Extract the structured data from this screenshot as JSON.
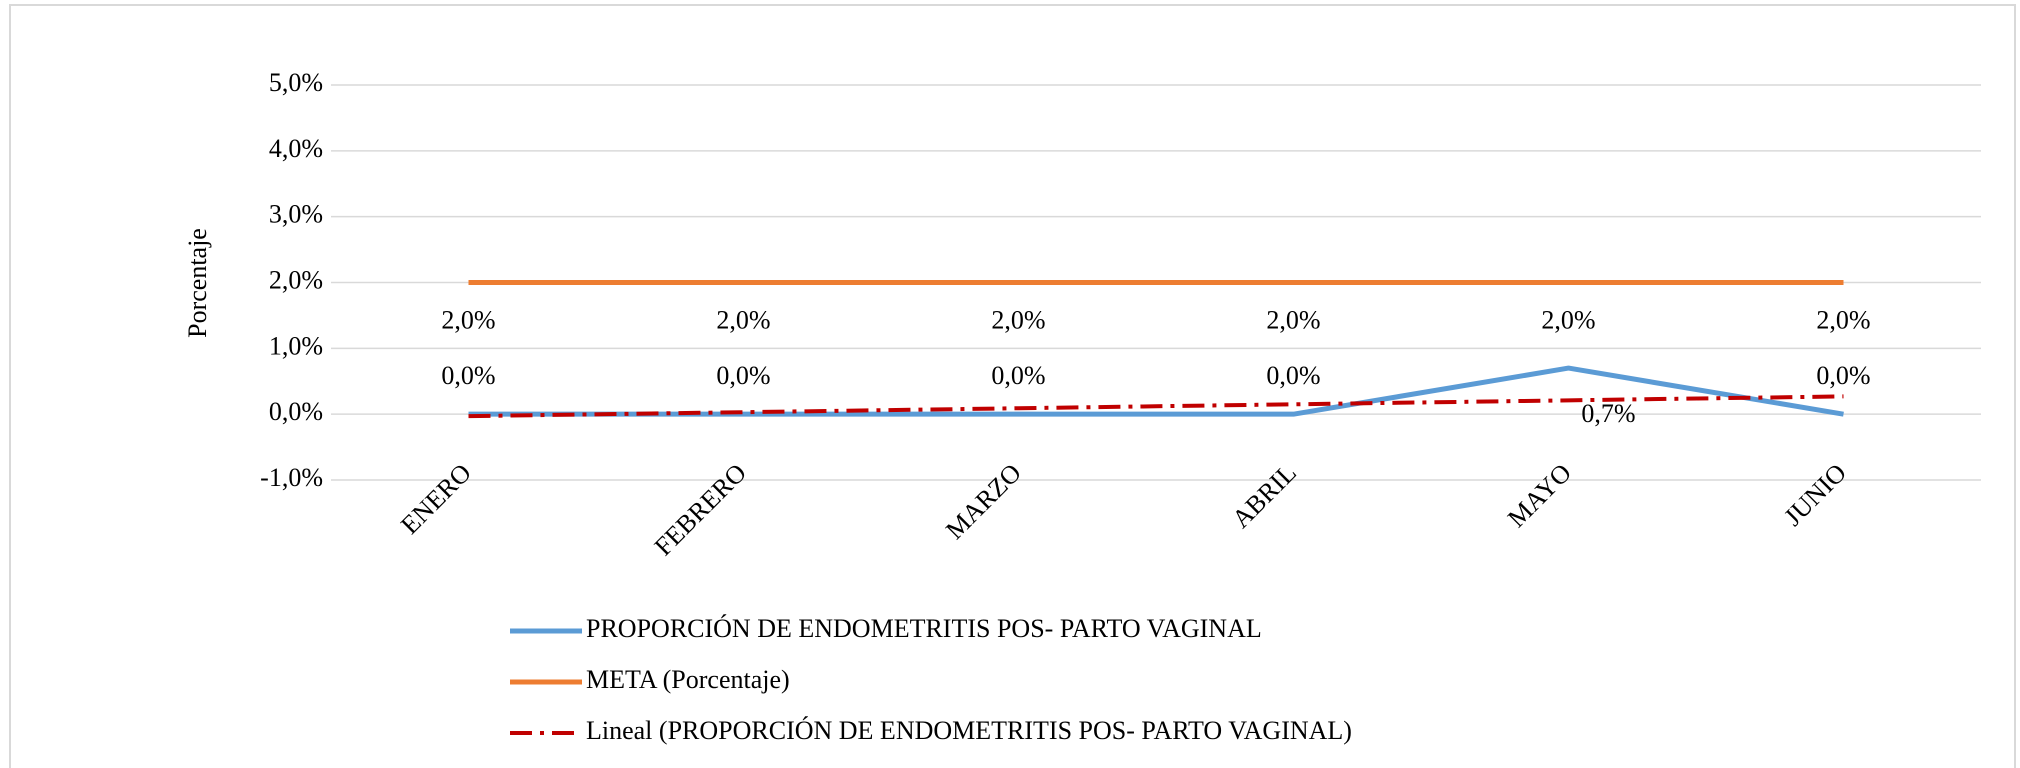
{
  "chart_data": {
    "type": "line",
    "y_label": "Porcentaje",
    "categories": [
      "ENERO",
      "FEBRERO",
      "MARZO",
      "ABRIL",
      "MAYO",
      "JUNIO"
    ],
    "series": [
      {
        "name": "PROPORCIÓN DE ENDOMETRITIS POS- PARTO VAGINAL",
        "color": "#5b9bd5",
        "values": [
          0,
          0,
          0,
          0,
          0.7,
          0
        ],
        "value_labels": [
          "0,0%",
          "0,0%",
          "0,0%",
          "0,0%",
          "0,7%",
          "0,0%"
        ]
      },
      {
        "name": "META (Porcentaje)",
        "color": "#ed7d31",
        "values": [
          2,
          2,
          2,
          2,
          2,
          2
        ],
        "value_labels": [
          "2,0%",
          "2,0%",
          "2,0%",
          "2,0%",
          "2,0%",
          "2,0%"
        ]
      },
      {
        "name": "Lineal (PROPORCIÓN DE ENDOMETRITIS POS- PARTO VAGINAL)",
        "color": "#c00000",
        "dash": "dash-dot",
        "values": [
          -0.03,
          0.03,
          0.09,
          0.15,
          0.21,
          0.27
        ]
      }
    ],
    "ylim": [
      -1,
      5
    ],
    "yticks": [
      {
        "value": -1,
        "label": "-1,0%"
      },
      {
        "value": 0,
        "label": "0,0%"
      },
      {
        "value": 1,
        "label": "1,0%"
      },
      {
        "value": 2,
        "label": "2,0%"
      },
      {
        "value": 3,
        "label": "3,0%"
      },
      {
        "value": 4,
        "label": "4,0%"
      },
      {
        "value": 5,
        "label": "5,0%"
      }
    ],
    "grid": true
  }
}
